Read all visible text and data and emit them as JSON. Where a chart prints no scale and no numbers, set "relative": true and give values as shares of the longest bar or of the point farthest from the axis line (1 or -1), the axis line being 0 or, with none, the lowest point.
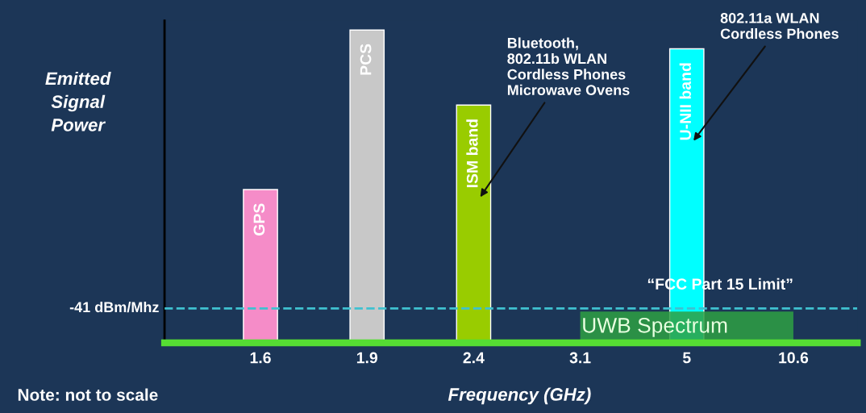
{
  "chart_data": {
    "type": "bar",
    "relative": true,
    "ylabel": "Emitted Signal Power",
    "xlabel": "Frequency (GHz)",
    "categories": [
      "1.6",
      "1.9",
      "2.4",
      "3.1",
      "5",
      "10.6"
    ],
    "series": [
      {
        "colors": [
          "#f58cc8",
          "#c8c8c8",
          "#99cc00",
          null,
          "#00ffff",
          null
        ],
        "values": [
          0.49,
          1,
          0.76,
          null,
          0.94,
          null
        ]
      },
      {
        "type": "area",
        "name": "UWB Spectrum",
        "color": "#2ea043",
        "values": [
          null,
          null,
          null,
          0.1,
          0.1,
          0.1
        ]
      }
    ],
    "ref_lines": [
      {
        "axis": "y",
        "value": 0.11,
        "label": "-41 dBm/Mhz",
        "color": "#3fc1d0",
        "line_style": "dashed"
      }
    ],
    "annotations": [
      {
        "text": "GPS",
        "x": "1.6",
        "y": 0.49
      },
      {
        "text": "PCS",
        "x": "1.9",
        "y": 1
      },
      {
        "text": "ISM band",
        "x": "2.4",
        "y": 0.76
      },
      {
        "text": "U-NII band",
        "x": "5",
        "y": 0.94
      },
      {
        "text": "Bluetooth,\n802.11b WLAN\nCordless Phones\nMicrowave Ovens",
        "x": "2.4",
        "y": 0.76
      },
      {
        "text": "802.11a WLAN\nCordless Phones",
        "x": "5",
        "y": 0.94
      },
      {
        "text": "“FCC Part 15 Limit”",
        "x": "10.6",
        "y": 0.11
      },
      "Note: not to scale"
    ],
    "legend": false,
    "grid": false
  }
}
